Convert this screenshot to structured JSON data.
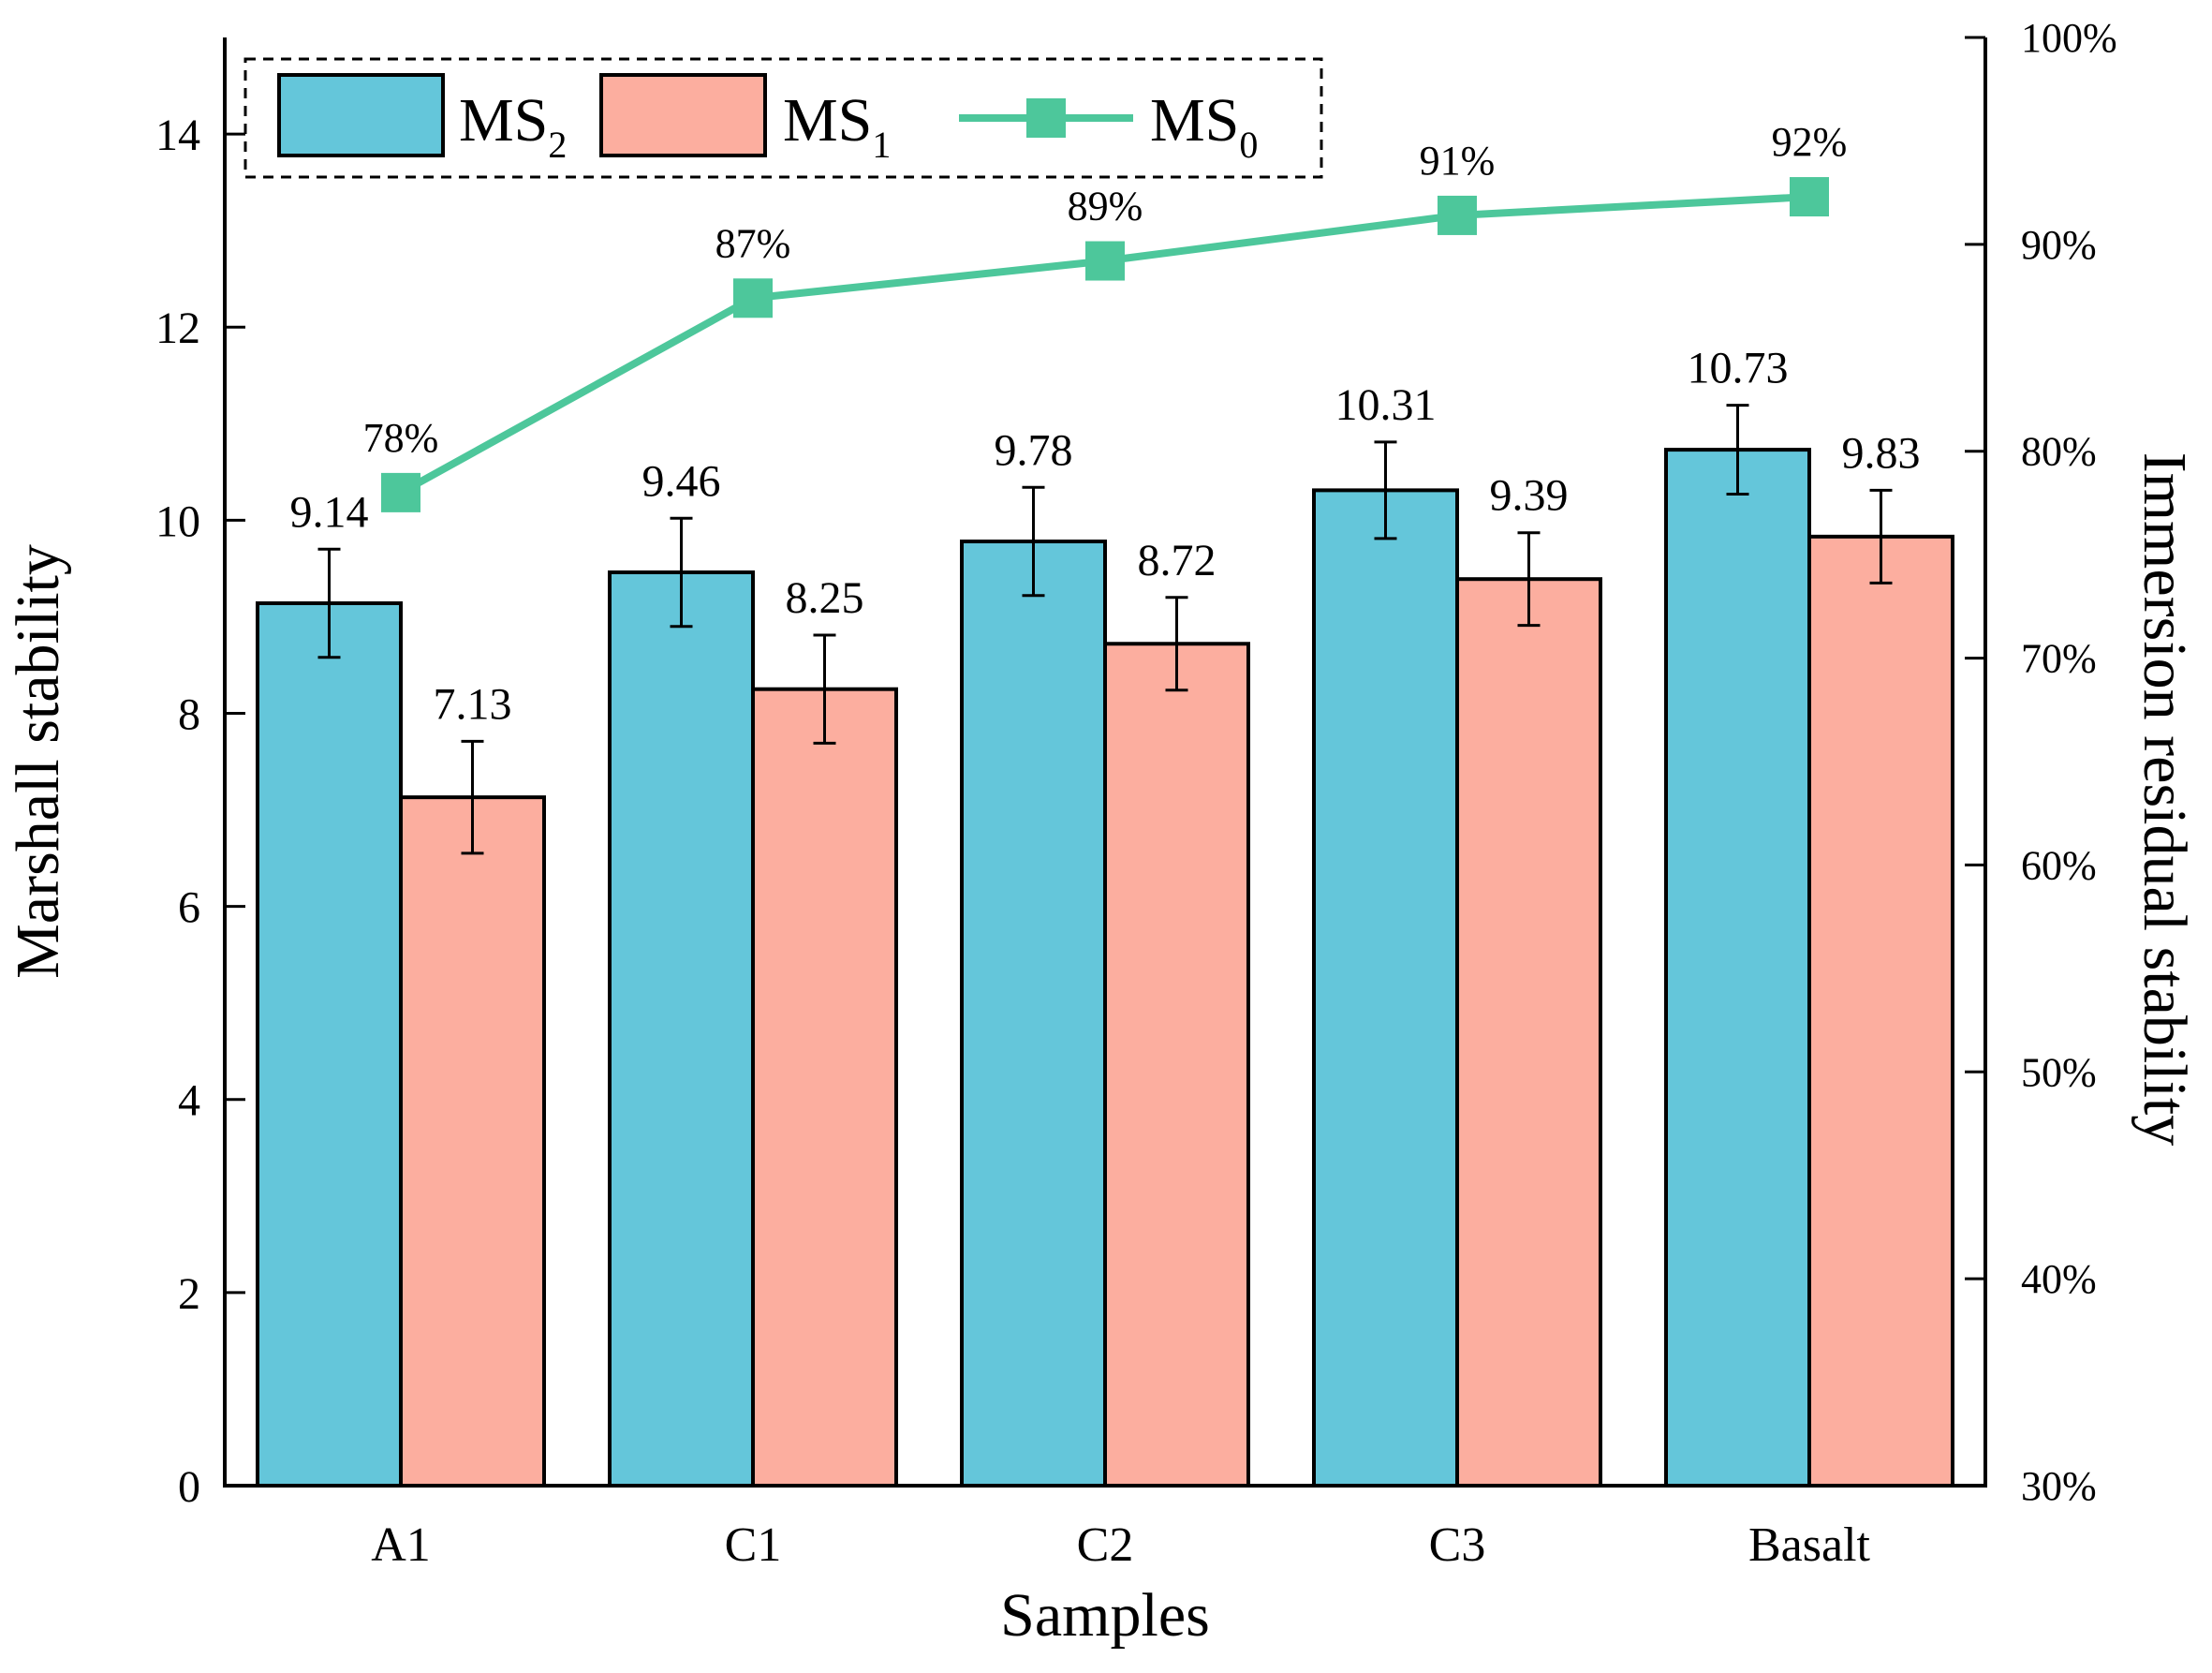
{
  "chart_data": {
    "type": "bar",
    "title": "",
    "xlabel": "Samples",
    "ylabel": "Marshall stability",
    "y2label": "Immersion residual stability",
    "categories": [
      "A1",
      "C1",
      "C2",
      "C3",
      "Basalt"
    ],
    "ylim": [
      0,
      15
    ],
    "y2lim": [
      30,
      100
    ],
    "yticks": [
      "0",
      "2",
      "4",
      "6",
      "8",
      "10",
      "12",
      "14"
    ],
    "y2ticks": [
      "30%",
      "40%",
      "50%",
      "60%",
      "70%",
      "80%",
      "90%",
      "100%"
    ],
    "legend_position": "top-left",
    "series": [
      {
        "name": "MS",
        "subscript": "2",
        "kind": "bar",
        "axis": "left",
        "color": "#64C6DA",
        "values": [
          9.14,
          9.46,
          9.78,
          10.31,
          10.73
        ],
        "errors": [
          0.56,
          0.56,
          0.56,
          0.5,
          0.46
        ],
        "labels": [
          "9.14",
          "9.46",
          "9.78",
          "10.31",
          "10.73"
        ]
      },
      {
        "name": "MS",
        "subscript": "1",
        "kind": "bar",
        "axis": "left",
        "color": "#FCAE9F",
        "values": [
          7.13,
          8.25,
          8.72,
          9.39,
          9.83
        ],
        "errors": [
          0.58,
          0.56,
          0.48,
          0.48,
          0.48
        ],
        "labels": [
          "7.13",
          "8.25",
          "8.72",
          "9.39",
          "9.83"
        ]
      },
      {
        "name": "MS",
        "subscript": "0",
        "kind": "line",
        "axis": "right",
        "color": "#4DC79B",
        "values": [
          78,
          87.4,
          89.2,
          91.4,
          92.3
        ],
        "labels": [
          "78%",
          "87%",
          "89%",
          "91%",
          "92%"
        ]
      }
    ]
  }
}
